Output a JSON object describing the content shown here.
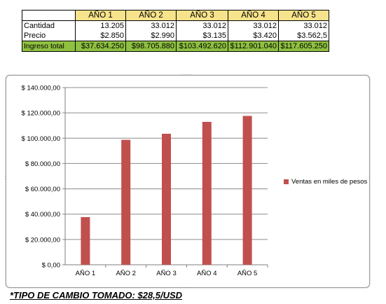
{
  "table": {
    "headers": [
      "",
      "AÑO 1",
      "AÑO 2",
      "AÑO 3",
      "AÑO 4",
      "AÑO 5"
    ],
    "rows": [
      {
        "label": "Cantidad",
        "values": [
          "13.205",
          "33.012",
          "33.012",
          "33.012",
          "33.012"
        ]
      },
      {
        "label": "Precio",
        "values": [
          "$2.850",
          "$2.990",
          "$3.135",
          "$3.420",
          "$3.562,5"
        ]
      },
      {
        "label": "Ingreso total",
        "values": [
          "$37.634.250",
          "$98.705.880",
          "$103.492.620",
          "$112.901.040",
          "$117.605.250"
        ]
      }
    ],
    "colors": {
      "header_bg": "#f7e38b",
      "total_bg": "#8fc140"
    }
  },
  "chart_data": {
    "type": "bar",
    "categories": [
      "AÑO 1",
      "AÑO 2",
      "AÑO 3",
      "AÑO 4",
      "AÑO 5"
    ],
    "series": [
      {
        "name": "Ventas en miles de pesos",
        "values": [
          37634.25,
          98705.88,
          103492.62,
          112901.04,
          117605.25
        ],
        "color": "#c0504d"
      }
    ],
    "ylim": [
      0,
      140000
    ],
    "yticks": [
      0,
      20000,
      40000,
      60000,
      80000,
      100000,
      120000,
      140000
    ],
    "ytick_labels": [
      "$ 0,00",
      "$ 20.000,00",
      "$ 40.000,00",
      "$ 60.000,00",
      "$ 80.000,00",
      "$ 100.000,00",
      "$ 120.000,00",
      "$ 140.000,00"
    ],
    "grid": true,
    "legend_position": "right"
  },
  "footnote": "*TIPO DE CAMBIO TOMADO: $28,5/USD"
}
